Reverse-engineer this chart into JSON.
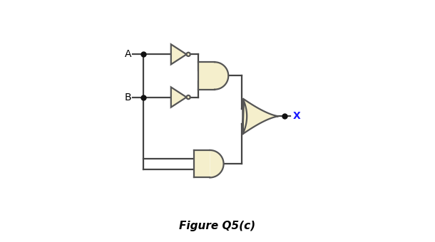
{
  "title": "Figure Q5(c)",
  "title_fontsize": 11,
  "title_fontweight": "bold",
  "background_color": "#ffffff",
  "gate_fill": "#f5efcc",
  "gate_edge": "#555555",
  "wire_color": "#444444",
  "wire_lw": 1.6,
  "dot_color": "#111111",
  "dot_size": 5,
  "label_A": "A",
  "label_B": "B",
  "label_X": "X",
  "label_fontsize": 10
}
